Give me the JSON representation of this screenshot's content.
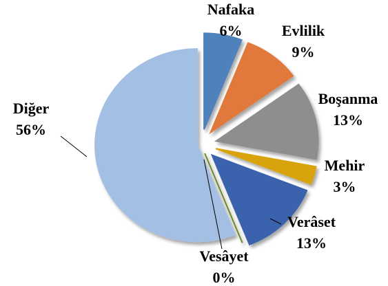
{
  "chart_data": {
    "type": "pie",
    "categories": [
      "Nafaka",
      "Evlilik",
      "Boşanma",
      "Mehir",
      "Verâset",
      "Vesâyet",
      "Diğer"
    ],
    "values": [
      6,
      9,
      13,
      3,
      13,
      0,
      56
    ],
    "value_labels": [
      "6%",
      "9%",
      "13%",
      "3%",
      "13%",
      "0%",
      "56%"
    ],
    "colors": [
      "#4f81bd",
      "#e0793a",
      "#8e8e8e",
      "#d9a30f",
      "#3b62ad",
      "#6e8f2a",
      "#a3bfe3"
    ]
  }
}
